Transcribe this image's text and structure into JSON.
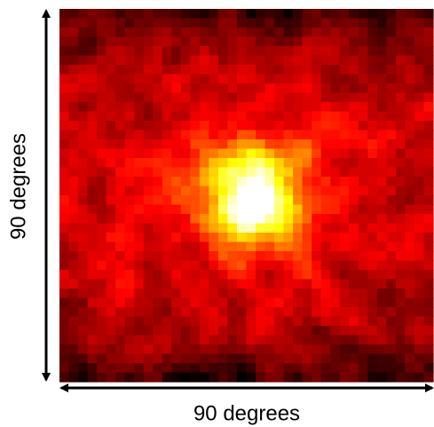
{
  "labels": {
    "x_axis": "90 degrees",
    "y_axis": "90 degrees"
  }
}
